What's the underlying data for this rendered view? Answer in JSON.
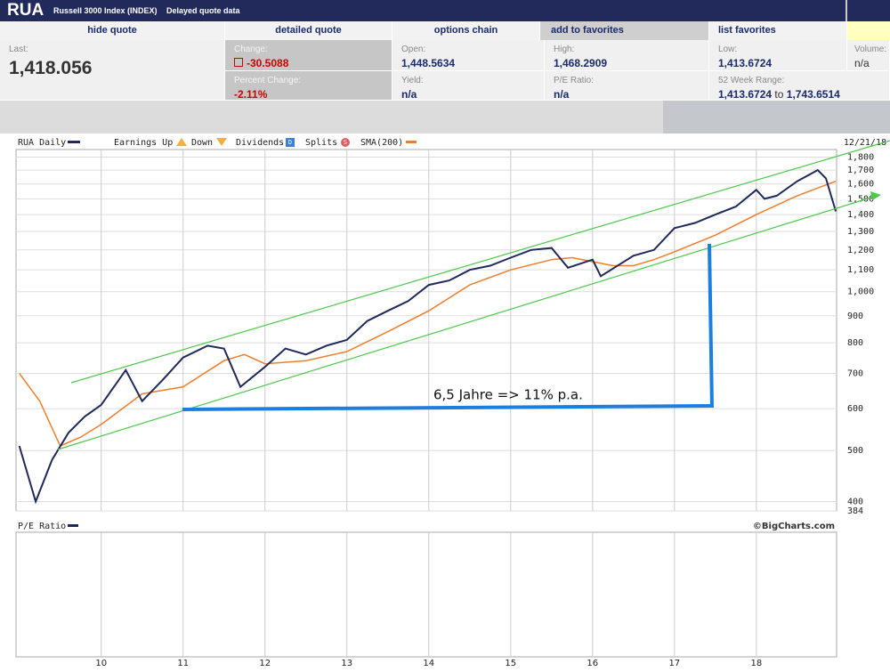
{
  "header": {
    "symbol": "RUA",
    "name": "Russell 3000 Index (INDEX)",
    "note": "Delayed quote data"
  },
  "nav": [
    "hide quote",
    "detailed quote",
    "options chain",
    "add to favorites",
    "list favorites"
  ],
  "quote": {
    "last": {
      "label": "Last:",
      "value": "1,418.056"
    },
    "change": {
      "label": "Change:",
      "value": "-30.5088"
    },
    "percent_change": {
      "label": "Percent Change:",
      "value": "-2.11%"
    },
    "open": {
      "label": "Open:",
      "value": "1,448.5634"
    },
    "yield": {
      "label": "Yield:",
      "value": "n/a"
    },
    "high": {
      "label": "High:",
      "value": "1,468.2909"
    },
    "pe_ratio": {
      "label": "P/E Ratio:",
      "value": "n/a"
    },
    "low": {
      "label": "Low:",
      "value": "1,413.6724"
    },
    "range_52week": {
      "label": "52 Week Range:",
      "low": "1,413.6724",
      "to": "to",
      "high": "1,743.6514"
    },
    "volume": {
      "label": "Volume:",
      "value": "n/a"
    }
  },
  "chart_data": {
    "type": "line",
    "title": "RUA Daily",
    "date": "12/21/18",
    "log_scale": true,
    "grid": true,
    "legend_markers": [
      {
        "label": "Earnings Up"
      },
      {
        "label": "Down"
      },
      {
        "label": "Dividends",
        "icon": "D"
      },
      {
        "label": "Splits",
        "icon": "S"
      }
    ],
    "xlim": [
      2008.96,
      2018.98
    ],
    "xticks": [
      {
        "value": 2010,
        "label": "10"
      },
      {
        "value": 2011,
        "label": "11"
      },
      {
        "value": 2012,
        "label": "12"
      },
      {
        "value": 2013,
        "label": "13"
      },
      {
        "value": 2014,
        "label": "14"
      },
      {
        "value": 2015,
        "label": "15"
      },
      {
        "value": 2016,
        "label": "16"
      },
      {
        "value": 2017,
        "label": "17"
      },
      {
        "value": 2018,
        "label": "18"
      }
    ],
    "ylim": [
      384,
      1860
    ],
    "yticks": [
      {
        "value": 1800,
        "label": "1,800"
      },
      {
        "value": 1700,
        "label": "1,700"
      },
      {
        "value": 1600,
        "label": "1,600"
      },
      {
        "value": 1500,
        "label": "1,500"
      },
      {
        "value": 1400,
        "label": "1,400"
      },
      {
        "value": 1300,
        "label": "1,300"
      },
      {
        "value": 1200,
        "label": "1,200"
      },
      {
        "value": 1100,
        "label": "1,100"
      },
      {
        "value": 1000,
        "label": "1,000"
      },
      900,
      800,
      700,
      600,
      500,
      400,
      384
    ],
    "series": [
      {
        "name": "RUA Daily",
        "color": "#1f2a5c",
        "x": [
          2009.0,
          2009.2,
          2009.4,
          2009.6,
          2009.8,
          2010.0,
          2010.3,
          2010.5,
          2010.75,
          2011.0,
          2011.3,
          2011.5,
          2011.7,
          2012.0,
          2012.25,
          2012.5,
          2012.75,
          2013.0,
          2013.25,
          2013.5,
          2013.75,
          2014.0,
          2014.25,
          2014.5,
          2014.75,
          2015.0,
          2015.25,
          2015.5,
          2015.7,
          2016.0,
          2016.1,
          2016.5,
          2016.75,
          2017.0,
          2017.25,
          2017.5,
          2017.75,
          2018.0,
          2018.1,
          2018.25,
          2018.5,
          2018.75,
          2018.85,
          2018.97
        ],
        "values": [
          510,
          400,
          480,
          540,
          580,
          610,
          710,
          620,
          680,
          750,
          790,
          780,
          660,
          720,
          780,
          760,
          790,
          810,
          880,
          920,
          960,
          1030,
          1050,
          1100,
          1120,
          1160,
          1200,
          1210,
          1110,
          1150,
          1070,
          1170,
          1200,
          1320,
          1350,
          1400,
          1450,
          1560,
          1500,
          1520,
          1620,
          1700,
          1640,
          1420
        ]
      },
      {
        "name": "SMA(200)",
        "color": "#f07d2a",
        "x": [
          2009.0,
          2009.25,
          2009.5,
          2009.75,
          2010.0,
          2010.5,
          2011.0,
          2011.5,
          2011.75,
          2012.0,
          2012.5,
          2013.0,
          2013.5,
          2014.0,
          2014.5,
          2015.0,
          2015.5,
          2015.75,
          2016.0,
          2016.25,
          2016.5,
          2016.75,
          2017.0,
          2017.5,
          2018.0,
          2018.5,
          2018.97
        ],
        "values": [
          700,
          620,
          510,
          530,
          560,
          640,
          660,
          740,
          760,
          730,
          740,
          770,
          840,
          920,
          1030,
          1100,
          1150,
          1160,
          1140,
          1120,
          1120,
          1150,
          1190,
          1280,
          1400,
          1520,
          1620
        ]
      }
    ],
    "annotation": "6,5 Jahre => 11% p.a.",
    "lower_pane_title": "P/E Ratio",
    "credit": "©BigCharts.com"
  }
}
